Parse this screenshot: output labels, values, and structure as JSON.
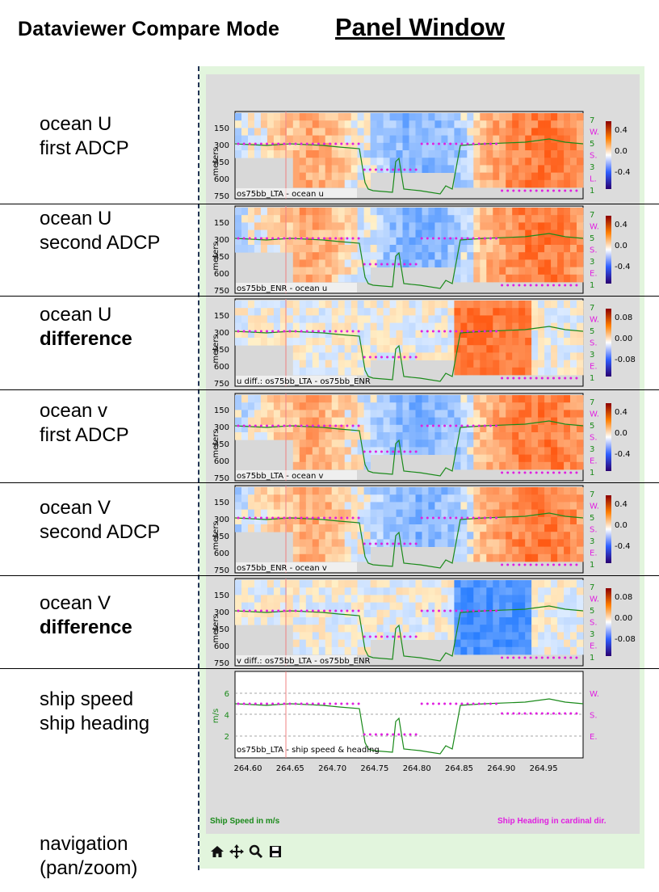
{
  "header": {
    "title": "Dataviewer Compare Mode",
    "subtitle": "Panel Window"
  },
  "panels": [
    {
      "line1": "ocean U",
      "line2": "first ADCP",
      "bold2": false,
      "caption": "os75bb_LTA - ocean u",
      "kind": "ocean",
      "cbar": [
        "0.4",
        "0.0",
        "-0.4"
      ]
    },
    {
      "line1": "ocean U",
      "line2": "second ADCP",
      "bold2": false,
      "caption": "os75bb_ENR - ocean u",
      "kind": "ocean",
      "cbar": [
        "0.4",
        "0.0",
        "-0.4"
      ]
    },
    {
      "line1": "ocean U",
      "line2": "difference",
      "bold2": true,
      "caption": "u diff.: os75bb_LTA - os75bb_ENR",
      "kind": "diffu",
      "cbar": [
        "0.08",
        "0.00",
        "-0.08"
      ]
    },
    {
      "line1": "ocean v",
      "line2": "first ADCP",
      "bold2": false,
      "caption": "os75bb_LTA - ocean v",
      "kind": "ocean",
      "cbar": [
        "0.4",
        "0.0",
        "-0.4"
      ]
    },
    {
      "line1": "ocean V",
      "line2": "second ADCP",
      "bold2": false,
      "caption": "os75bb_ENR - ocean v",
      "kind": "ocean",
      "cbar": [
        "0.4",
        "0.0",
        "-0.4"
      ]
    },
    {
      "line1": "ocean V",
      "line2": "difference",
      "bold2": true,
      "caption": "v diff.: os75bb_LTA - os75bb_ENR",
      "kind": "diffv",
      "cbar": [
        "0.08",
        "0.00",
        "-0.08"
      ]
    }
  ],
  "speed_panel": {
    "line1": "ship speed",
    "line2": "ship heading",
    "caption": "os75bb_LTA - ship speed & heading",
    "ylabel": "m/s",
    "yticks": [
      "6",
      "4",
      "2"
    ],
    "heading_labels": [
      "W.",
      "S.",
      "E."
    ],
    "xticks": [
      "264.60",
      "264.65",
      "264.70",
      "264.75",
      "264.80",
      "264.85",
      "264.90",
      "264.95"
    ]
  },
  "depth_axis": {
    "label": "meters",
    "ticks": [
      "150",
      "300",
      "450",
      "600",
      "750"
    ]
  },
  "right_axis_ticks": [
    "7",
    "W.",
    "5",
    "S.",
    "3",
    "E.",
    "1"
  ],
  "right_axis_ticks_first": [
    "7",
    "W.",
    "5",
    "S.",
    "3",
    "L.",
    "1"
  ],
  "navigation": {
    "line1": "navigation",
    "line2": "(pan/zoom)"
  },
  "footer": {
    "left": "Ship Speed in m/s",
    "right": "Ship Heading in cardinal dir."
  },
  "toolbar": [
    {
      "name": "home-icon"
    },
    {
      "name": "pan-icon"
    },
    {
      "name": "zoom-icon"
    },
    {
      "name": "save-icon"
    }
  ],
  "colors": {
    "green": "#1a8a1a",
    "magenta": "#e020e0",
    "frame": "#e2f5dd",
    "panel_bg": "#dcdcdc"
  }
}
